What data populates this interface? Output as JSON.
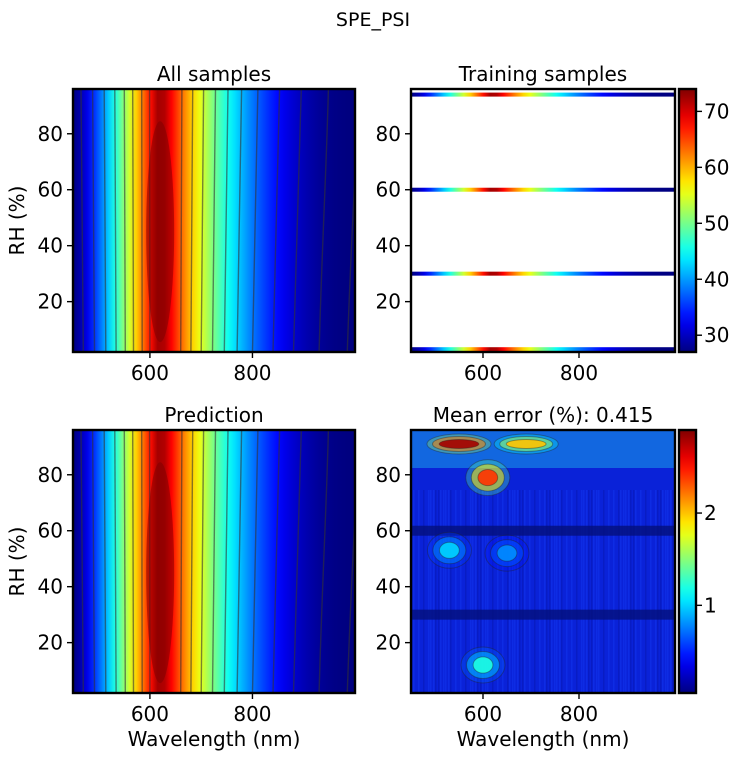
{
  "figure": {
    "suptitle": "SPE_PSI"
  },
  "chart_data": [
    {
      "type": "heatmap",
      "title": "All samples",
      "xlabel": "",
      "ylabel": "RH (%)",
      "xlim": [
        450,
        1000
      ],
      "ylim": [
        2,
        96
      ],
      "xticks": [
        600,
        800
      ],
      "yticks": [
        20,
        40,
        60,
        80
      ],
      "colorscale": "jet",
      "clim": [
        27,
        74
      ],
      "peak_wavelength_nm": 620
    },
    {
      "type": "heatmap",
      "title": "Training samples",
      "xlabel": "",
      "ylabel": "",
      "xlim": [
        450,
        1000
      ],
      "ylim": [
        2,
        96
      ],
      "xticks": [
        600,
        800
      ],
      "yticks": [
        20,
        40,
        60,
        80
      ],
      "colorscale": "jet",
      "training_rh": [
        3,
        30,
        60,
        94
      ],
      "colorbar": {
        "ticks": [
          30,
          40,
          50,
          60,
          70
        ],
        "range": [
          27,
          74
        ]
      }
    },
    {
      "type": "heatmap",
      "title": "Prediction",
      "xlabel": "Wavelength (nm)",
      "ylabel": "RH (%)",
      "xlim": [
        450,
        1000
      ],
      "ylim": [
        2,
        96
      ],
      "xticks": [
        600,
        800
      ],
      "yticks": [
        20,
        40,
        60,
        80
      ],
      "colorscale": "jet",
      "clim": [
        27,
        74
      ]
    },
    {
      "type": "heatmap",
      "title": "Mean error (%): 0.415",
      "xlabel": "Wavelength (nm)",
      "ylabel": "",
      "xlim": [
        450,
        1000
      ],
      "ylim": [
        2,
        96
      ],
      "xticks": [
        600,
        800
      ],
      "yticks": [
        20,
        40,
        60,
        80
      ],
      "colorscale": "jet",
      "mean_error": 0.415,
      "hotspots": [
        {
          "x": 550,
          "y": 91,
          "value": 2.8
        },
        {
          "x": 690,
          "y": 91,
          "value": 2.0
        },
        {
          "x": 610,
          "y": 79,
          "value": 2.4
        },
        {
          "x": 600,
          "y": 12,
          "value": 1.2
        },
        {
          "x": 530,
          "y": 53,
          "value": 1.0
        },
        {
          "x": 650,
          "y": 52,
          "value": 0.8
        }
      ],
      "colorbar": {
        "ticks": [
          1,
          2
        ],
        "range": [
          0.05,
          2.9
        ]
      }
    }
  ]
}
